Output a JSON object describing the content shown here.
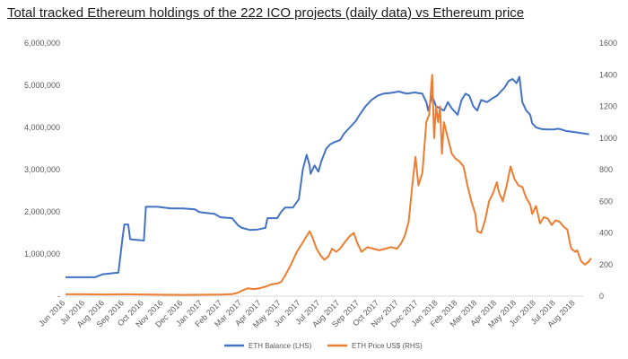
{
  "chart_data": {
    "type": "line",
    "title": "Total tracked Ethereum holdings of the 222 ICO projects (daily data) vs Ethereum price",
    "xlabel": "",
    "grid": false,
    "legend_position": "bottom",
    "x_categories": [
      "Jun 2016",
      "Jul 2016",
      "Aug 2016",
      "Sep 2016",
      "Oct 2016",
      "Nov 2016",
      "Dec 2016",
      "Jan 2017",
      "Feb 2017",
      "Mar 2017",
      "Apr 2017",
      "May 2017",
      "Jun 2017",
      "Jul 2017",
      "Aug 2017",
      "Sep 2017",
      "Oct 2017",
      "Nov 2017",
      "Dec 2017",
      "Jan 2018",
      "Feb 2018",
      "Mar 2018",
      "Apr 2018",
      "May 2018",
      "Jun 2018",
      "Jul 2018",
      "Aug 2018"
    ],
    "y_left": {
      "label": "",
      "range": [
        0,
        6000000
      ],
      "tick_values": [
        0,
        1000000,
        2000000,
        3000000,
        4000000,
        5000000,
        6000000
      ],
      "tick_labels": [
        "-",
        "1,000,000",
        "2,000,000",
        "3,000,000",
        "4,000,000",
        "5,000,000",
        "6,000,000"
      ]
    },
    "y_right": {
      "label": "",
      "range": [
        0,
        1600
      ],
      "tick_values": [
        0,
        200,
        400,
        600,
        800,
        1000,
        1200,
        1400,
        1600
      ],
      "tick_labels": [
        "0",
        "200",
        "400",
        "600",
        "800",
        "1000",
        "1200",
        "1400",
        "1600"
      ]
    },
    "series": [
      {
        "name": "ETH Balance (LHS)",
        "axis": "left",
        "color": "#4472c4",
        "points": [
          [
            0.0,
            450000
          ],
          [
            1.5,
            450000
          ],
          [
            1.9,
            520000
          ],
          [
            2.7,
            560000
          ],
          [
            2.9,
            1350000
          ],
          [
            3.0,
            1700000
          ],
          [
            3.2,
            1700000
          ],
          [
            3.3,
            1350000
          ],
          [
            4.0,
            1320000
          ],
          [
            4.1,
            2120000
          ],
          [
            4.7,
            2120000
          ],
          [
            5.0,
            2100000
          ],
          [
            5.4,
            2080000
          ],
          [
            6.0,
            2080000
          ],
          [
            6.6,
            2060000
          ],
          [
            6.8,
            2000000
          ],
          [
            7.0,
            1980000
          ],
          [
            7.6,
            1950000
          ],
          [
            7.9,
            1870000
          ],
          [
            8.5,
            1850000
          ],
          [
            8.8,
            1680000
          ],
          [
            9.0,
            1620000
          ],
          [
            9.4,
            1570000
          ],
          [
            9.8,
            1580000
          ],
          [
            10.2,
            1620000
          ],
          [
            10.3,
            1850000
          ],
          [
            10.8,
            1850000
          ],
          [
            11.0,
            2000000
          ],
          [
            11.2,
            2100000
          ],
          [
            11.6,
            2100000
          ],
          [
            11.9,
            2300000
          ],
          [
            12.1,
            3000000
          ],
          [
            12.3,
            3350000
          ],
          [
            12.45,
            3100000
          ],
          [
            12.5,
            2900000
          ],
          [
            12.7,
            3100000
          ],
          [
            12.9,
            2950000
          ],
          [
            13.05,
            3200000
          ],
          [
            13.3,
            3500000
          ],
          [
            13.5,
            3600000
          ],
          [
            13.7,
            3650000
          ],
          [
            14.0,
            3700000
          ],
          [
            14.2,
            3850000
          ],
          [
            14.5,
            4000000
          ],
          [
            14.8,
            4150000
          ],
          [
            15.0,
            4300000
          ],
          [
            15.3,
            4500000
          ],
          [
            15.6,
            4650000
          ],
          [
            15.9,
            4750000
          ],
          [
            16.2,
            4800000
          ],
          [
            16.6,
            4820000
          ],
          [
            17.0,
            4850000
          ],
          [
            17.4,
            4800000
          ],
          [
            17.8,
            4830000
          ],
          [
            18.2,
            4800000
          ],
          [
            18.4,
            4600000
          ],
          [
            18.5,
            4400000
          ],
          [
            18.7,
            4750000
          ],
          [
            18.9,
            4500000
          ],
          [
            19.1,
            4450000
          ],
          [
            19.3,
            4400000
          ],
          [
            19.5,
            4600000
          ],
          [
            19.7,
            4450000
          ],
          [
            20.0,
            4300000
          ],
          [
            20.2,
            4650000
          ],
          [
            20.4,
            4800000
          ],
          [
            20.6,
            4750000
          ],
          [
            20.8,
            4500000
          ],
          [
            21.0,
            4400000
          ],
          [
            21.2,
            4650000
          ],
          [
            21.5,
            4600000
          ],
          [
            21.8,
            4700000
          ],
          [
            22.0,
            4750000
          ],
          [
            22.2,
            4850000
          ],
          [
            22.4,
            4950000
          ],
          [
            22.6,
            5100000
          ],
          [
            22.8,
            5150000
          ],
          [
            23.0,
            5050000
          ],
          [
            23.15,
            5200000
          ],
          [
            23.3,
            4600000
          ],
          [
            23.5,
            4400000
          ],
          [
            23.7,
            4300000
          ],
          [
            23.8,
            4100000
          ],
          [
            24.0,
            4000000
          ],
          [
            24.3,
            3960000
          ],
          [
            24.6,
            3950000
          ],
          [
            24.9,
            3950000
          ],
          [
            25.1,
            3970000
          ],
          [
            25.3,
            3950000
          ],
          [
            25.5,
            3920000
          ],
          [
            25.8,
            3900000
          ],
          [
            26.1,
            3880000
          ],
          [
            26.4,
            3860000
          ],
          [
            26.7,
            3840000
          ]
        ]
      },
      {
        "name": "ETH Price US$ (RHS)",
        "axis": "right",
        "color": "#ed7d31",
        "points": [
          [
            0.0,
            12
          ],
          [
            1.0,
            12
          ],
          [
            2.0,
            11
          ],
          [
            3.0,
            12
          ],
          [
            4.0,
            11
          ],
          [
            5.0,
            9
          ],
          [
            6.0,
            8
          ],
          [
            7.0,
            9
          ],
          [
            8.0,
            11
          ],
          [
            8.5,
            13
          ],
          [
            8.8,
            22
          ],
          [
            9.0,
            35
          ],
          [
            9.3,
            50
          ],
          [
            9.6,
            45
          ],
          [
            9.9,
            50
          ],
          [
            10.2,
            60
          ],
          [
            10.5,
            75
          ],
          [
            10.8,
            80
          ],
          [
            11.0,
            90
          ],
          [
            11.2,
            130
          ],
          [
            11.5,
            200
          ],
          [
            11.8,
            280
          ],
          [
            12.0,
            320
          ],
          [
            12.3,
            380
          ],
          [
            12.45,
            410
          ],
          [
            12.6,
            370
          ],
          [
            12.8,
            300
          ],
          [
            13.0,
            260
          ],
          [
            13.2,
            230
          ],
          [
            13.4,
            250
          ],
          [
            13.6,
            300
          ],
          [
            13.8,
            280
          ],
          [
            14.0,
            300
          ],
          [
            14.3,
            350
          ],
          [
            14.5,
            380
          ],
          [
            14.7,
            400
          ],
          [
            14.9,
            330
          ],
          [
            15.1,
            280
          ],
          [
            15.4,
            310
          ],
          [
            15.7,
            300
          ],
          [
            16.0,
            290
          ],
          [
            16.3,
            300
          ],
          [
            16.6,
            310
          ],
          [
            16.9,
            300
          ],
          [
            17.1,
            330
          ],
          [
            17.3,
            380
          ],
          [
            17.5,
            470
          ],
          [
            17.7,
            720
          ],
          [
            17.85,
            880
          ],
          [
            18.0,
            700
          ],
          [
            18.2,
            780
          ],
          [
            18.4,
            1100
          ],
          [
            18.55,
            1150
          ],
          [
            18.7,
            1400
          ],
          [
            18.8,
            1000
          ],
          [
            18.9,
            1200
          ],
          [
            19.0,
            1100
          ],
          [
            19.1,
            1200
          ],
          [
            19.2,
            900
          ],
          [
            19.3,
            1100
          ],
          [
            19.5,
            1000
          ],
          [
            19.7,
            900
          ],
          [
            19.9,
            870
          ],
          [
            20.1,
            850
          ],
          [
            20.3,
            820
          ],
          [
            20.5,
            700
          ],
          [
            20.7,
            600
          ],
          [
            20.9,
            520
          ],
          [
            21.0,
            410
          ],
          [
            21.2,
            400
          ],
          [
            21.4,
            480
          ],
          [
            21.6,
            600
          ],
          [
            21.8,
            650
          ],
          [
            22.0,
            720
          ],
          [
            22.1,
            660
          ],
          [
            22.3,
            600
          ],
          [
            22.5,
            700
          ],
          [
            22.7,
            820
          ],
          [
            22.9,
            740
          ],
          [
            23.1,
            700
          ],
          [
            23.3,
            690
          ],
          [
            23.5,
            620
          ],
          [
            23.7,
            580
          ],
          [
            23.8,
            520
          ],
          [
            24.0,
            570
          ],
          [
            24.2,
            460
          ],
          [
            24.4,
            500
          ],
          [
            24.6,
            490
          ],
          [
            24.8,
            450
          ],
          [
            25.0,
            480
          ],
          [
            25.2,
            470
          ],
          [
            25.4,
            440
          ],
          [
            25.6,
            420
          ],
          [
            25.7,
            350
          ],
          [
            25.8,
            300
          ],
          [
            25.9,
            290
          ],
          [
            26.0,
            280
          ],
          [
            26.1,
            290
          ],
          [
            26.3,
            220
          ],
          [
            26.5,
            200
          ],
          [
            26.7,
            220
          ],
          [
            26.8,
            240
          ]
        ]
      }
    ]
  }
}
